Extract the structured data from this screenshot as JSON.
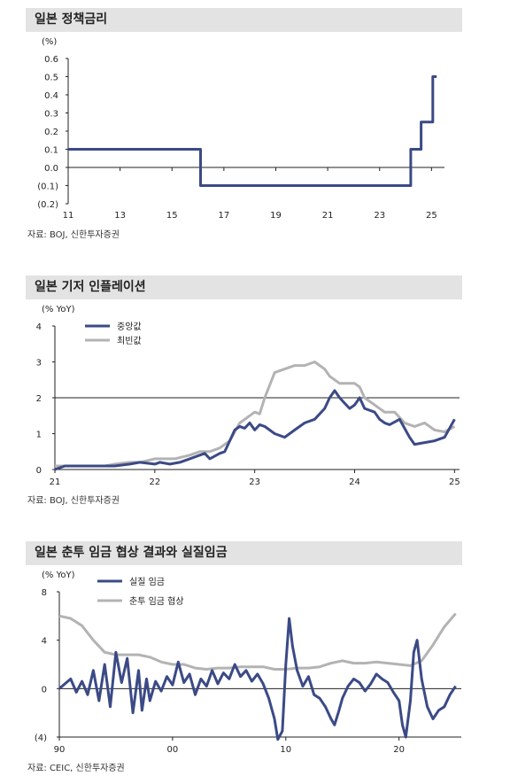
{
  "charts": [
    {
      "title": "일본 정책금리",
      "source": "자료: BOJ, 신한투자증권",
      "unit": "(%)"
    },
    {
      "title": "일본 기저 인플레이션",
      "source": "자료: BOJ, 신한투자증권",
      "unit": "(% YoY)"
    },
    {
      "title": "일본 춘투 임금 협상 결과와 실질임금",
      "source": "자료: CEIC, 신한투자증권",
      "unit": "(% YoY)"
    }
  ],
  "colors": {
    "navy": "#3b4a86",
    "gray": "#b3b3b3",
    "axis": "#222222",
    "title_bg": "#e3e3e3"
  },
  "chart_data": [
    {
      "type": "line",
      "title": "일본 정책금리",
      "ylabel": "(%)",
      "xlim": [
        2011,
        2025.5
      ],
      "ylim": [
        -0.2,
        0.6
      ],
      "x_ticks": [
        11,
        13,
        15,
        17,
        19,
        21,
        23,
        25
      ],
      "y_ticks": [
        "0.6",
        "0.5",
        "0.4",
        "0.3",
        "0.2",
        "0.1",
        "0.0",
        "(0.1)",
        "(0.2)"
      ],
      "series": [
        {
          "color": "#3b4a86",
          "x": [
            2011.0,
            2016.1,
            2016.1,
            2024.2,
            2024.2,
            2024.6,
            2024.6,
            2025.05,
            2025.05,
            2025.2
          ],
          "y": [
            0.1,
            0.1,
            -0.1,
            -0.1,
            0.1,
            0.1,
            0.25,
            0.25,
            0.5,
            0.5
          ]
        }
      ]
    },
    {
      "type": "line",
      "title": "일본 기저 인플레이션",
      "ylabel": "(% YoY)",
      "xlim": [
        2021,
        2025.05
      ],
      "ylim": [
        0,
        4
      ],
      "x_ticks": [
        "21",
        "22",
        "23",
        "24",
        "25"
      ],
      "y_ticks": [
        "4",
        "3",
        "2",
        "1",
        "0"
      ],
      "series": [
        {
          "name": "중앙값",
          "color": "#3b4a86",
          "x": [
            2021.0,
            2021.1,
            2021.3,
            2021.5,
            2021.6,
            2021.75,
            2021.85,
            2022.0,
            2022.05,
            2022.15,
            2022.25,
            2022.35,
            2022.45,
            2022.5,
            2022.55,
            2022.65,
            2022.7,
            2022.75,
            2022.8,
            2022.85,
            2022.9,
            2022.95,
            2023.0,
            2023.05,
            2023.1,
            2023.2,
            2023.3,
            2023.4,
            2023.5,
            2023.6,
            2023.7,
            2023.75,
            2023.8,
            2023.85,
            2023.9,
            2023.95,
            2024.0,
            2024.05,
            2024.1,
            2024.2,
            2024.25,
            2024.3,
            2024.35,
            2024.45,
            2024.55,
            2024.6,
            2024.7,
            2024.8,
            2024.9,
            2025.0
          ],
          "y": [
            0.0,
            0.1,
            0.1,
            0.1,
            0.1,
            0.15,
            0.2,
            0.15,
            0.2,
            0.15,
            0.2,
            0.3,
            0.4,
            0.45,
            0.3,
            0.45,
            0.5,
            0.8,
            1.1,
            1.2,
            1.15,
            1.3,
            1.1,
            1.25,
            1.2,
            1.0,
            0.9,
            1.1,
            1.3,
            1.4,
            1.7,
            2.0,
            2.2,
            2.0,
            1.85,
            1.7,
            1.8,
            2.0,
            1.7,
            1.6,
            1.4,
            1.3,
            1.25,
            1.4,
            0.9,
            0.7,
            0.75,
            0.8,
            0.9,
            1.4
          ]
        },
        {
          "name": "최빈값",
          "color": "#b3b3b3",
          "x": [
            2021.0,
            2021.1,
            2021.3,
            2021.5,
            2021.6,
            2021.75,
            2021.85,
            2022.0,
            2022.2,
            2022.35,
            2022.45,
            2022.55,
            2022.65,
            2022.75,
            2022.85,
            2022.95,
            2023.0,
            2023.05,
            2023.1,
            2023.2,
            2023.3,
            2023.4,
            2023.5,
            2023.6,
            2023.7,
            2023.75,
            2023.8,
            2023.85,
            2023.9,
            2023.95,
            2024.0,
            2024.05,
            2024.1,
            2024.2,
            2024.3,
            2024.4,
            2024.5,
            2024.6,
            2024.7,
            2024.8,
            2024.9,
            2025.0
          ],
          "y": [
            0.1,
            0.1,
            0.1,
            0.1,
            0.15,
            0.2,
            0.2,
            0.3,
            0.3,
            0.4,
            0.5,
            0.5,
            0.6,
            0.8,
            1.3,
            1.5,
            1.6,
            1.55,
            2.0,
            2.7,
            2.8,
            2.9,
            2.9,
            3.0,
            2.8,
            2.6,
            2.5,
            2.4,
            2.4,
            2.4,
            2.4,
            2.3,
            2.0,
            1.8,
            1.6,
            1.6,
            1.3,
            1.2,
            1.3,
            1.1,
            1.05,
            1.2
          ]
        }
      ]
    },
    {
      "type": "line",
      "title": "일본 춘투 임금 협상 결과와 실질임금",
      "ylabel": "(% YoY)",
      "xlim": [
        1990,
        2025.5
      ],
      "ylim": [
        -4,
        8
      ],
      "x_ticks": [
        "90",
        "00",
        "10",
        "20"
      ],
      "y_ticks": [
        "8",
        "4",
        "0",
        "(4)"
      ],
      "series": [
        {
          "name": "실질 임금",
          "color": "#3b4a86",
          "x": [
            1990.0,
            1991.0,
            1991.5,
            1992.0,
            1992.5,
            1993.0,
            1993.5,
            1994.0,
            1994.5,
            1995.0,
            1995.5,
            1996.0,
            1996.5,
            1997.0,
            1997.3,
            1997.7,
            1998.0,
            1998.5,
            1999.0,
            1999.5,
            2000.0,
            2000.5,
            2001.0,
            2001.5,
            2002.0,
            2002.5,
            2003.0,
            2003.5,
            2004.0,
            2004.5,
            2005.0,
            2005.5,
            2006.0,
            2006.5,
            2007.0,
            2007.5,
            2008.0,
            2008.5,
            2009.0,
            2009.3,
            2009.7,
            2010.0,
            2010.3,
            2010.6,
            2011.0,
            2011.5,
            2012.0,
            2012.5,
            2013.0,
            2013.5,
            2014.0,
            2014.3,
            2014.7,
            2015.0,
            2015.5,
            2016.0,
            2016.5,
            2017.0,
            2017.5,
            2018.0,
            2018.5,
            2019.0,
            2019.5,
            2020.0,
            2020.3,
            2020.6,
            2021.0,
            2021.3,
            2021.6,
            2022.0,
            2022.5,
            2023.0,
            2023.5,
            2024.0,
            2024.5,
            2025.0
          ],
          "y": [
            0.0,
            0.8,
            -0.3,
            0.6,
            -0.5,
            1.5,
            -1.0,
            2.0,
            -1.5,
            3.0,
            0.5,
            2.5,
            -2.0,
            1.5,
            -1.8,
            0.8,
            -1.0,
            0.6,
            -0.2,
            1.0,
            0.3,
            2.2,
            0.5,
            1.2,
            -0.5,
            0.8,
            0.2,
            1.5,
            0.4,
            1.3,
            0.8,
            2.0,
            1.0,
            1.5,
            0.6,
            1.2,
            0.4,
            -0.8,
            -2.5,
            -4.2,
            -3.5,
            2.0,
            5.8,
            3.5,
            1.5,
            0.2,
            1.0,
            -0.5,
            -0.8,
            -1.5,
            -2.5,
            -3.0,
            -1.8,
            -0.8,
            0.2,
            0.8,
            0.5,
            -0.2,
            0.4,
            1.2,
            0.8,
            0.5,
            -0.3,
            -1.0,
            -3.0,
            -4.0,
            -1.0,
            3.0,
            4.0,
            0.8,
            -1.5,
            -2.5,
            -1.8,
            -1.5,
            -0.5,
            0.2
          ]
        },
        {
          "name": "춘투 임금 협상",
          "color": "#b3b3b3",
          "x": [
            1990.0,
            1991.0,
            1992.0,
            1993.0,
            1994.0,
            1995.0,
            1996.0,
            1997.0,
            1998.0,
            1999.0,
            2000.0,
            2001.0,
            2002.0,
            2003.0,
            2004.0,
            2005.0,
            2006.0,
            2007.0,
            2008.0,
            2009.0,
            2010.0,
            2011.0,
            2012.0,
            2013.0,
            2014.0,
            2015.0,
            2016.0,
            2017.0,
            2018.0,
            2019.0,
            2020.0,
            2021.0,
            2022.0,
            2023.0,
            2024.0,
            2025.0
          ],
          "y": [
            6.0,
            5.8,
            5.2,
            4.0,
            3.0,
            2.8,
            2.8,
            2.8,
            2.6,
            2.2,
            2.0,
            2.0,
            1.7,
            1.6,
            1.7,
            1.7,
            1.8,
            1.8,
            1.8,
            1.6,
            1.6,
            1.7,
            1.7,
            1.8,
            2.1,
            2.3,
            2.1,
            2.1,
            2.2,
            2.1,
            2.0,
            1.9,
            2.3,
            3.6,
            5.1,
            6.2
          ]
        }
      ]
    }
  ]
}
